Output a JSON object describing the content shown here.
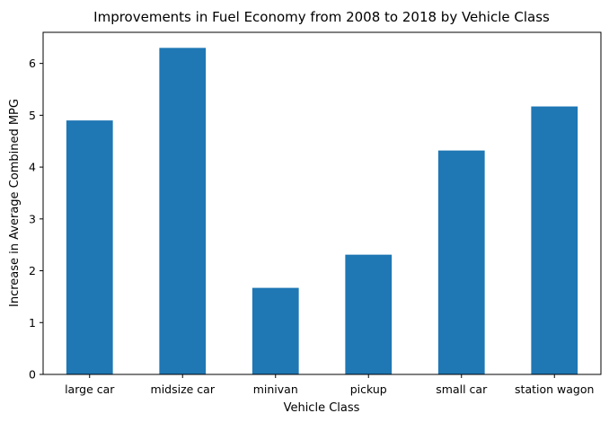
{
  "chart_data": {
    "type": "bar",
    "title": "Improvements in Fuel Economy from 2008 to 2018 by Vehicle Class",
    "xlabel": "Vehicle Class",
    "ylabel": "Increase in Average Combined MPG",
    "categories": [
      "large car",
      "midsize car",
      "minivan",
      "pickup",
      "small car",
      "station wagon"
    ],
    "values": [
      4.9,
      6.3,
      1.67,
      2.31,
      4.32,
      5.17
    ],
    "ylim": [
      0,
      6.6
    ],
    "yticks": [
      0,
      1,
      2,
      3,
      4,
      5,
      6
    ],
    "grid": false,
    "legend": "none",
    "bar_color": "#1f77b4"
  }
}
